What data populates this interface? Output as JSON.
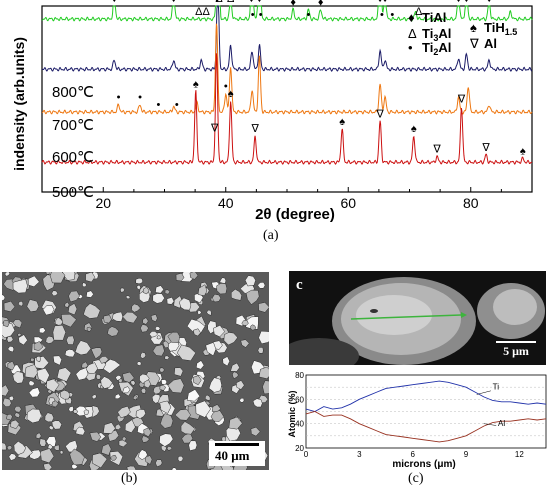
{
  "chart_data": [
    {
      "type": "line",
      "panel_label": "(a)",
      "xlabel": "2θ (degree)",
      "ylabel": "indensity (arb.units)",
      "xlim": [
        10,
        90
      ],
      "x_ticks": [
        "20",
        "40",
        "60",
        "80"
      ],
      "x_tick_values": [
        20,
        40,
        60,
        80
      ],
      "grid": false,
      "legend_position": "top-right",
      "legend": [
        {
          "symbol": "♦",
          "label": "TiAl"
        },
        {
          "symbol": "Δ",
          "label": "Ti3Al"
        },
        {
          "symbol": "•",
          "label": "Ti2Al"
        },
        {
          "symbol": "♠",
          "label": "TiH1.5"
        },
        {
          "symbol": "∇",
          "label": "Al"
        }
      ],
      "series": [
        {
          "name": "800℃",
          "color": "#22cc22",
          "baseline": 0.93,
          "peaks": [
            [
              21.8,
              0.12
            ],
            [
              31.5,
              0.12
            ],
            [
              38.7,
              0.95
            ],
            [
              40.8,
              0.12
            ],
            [
              44.3,
              0.28
            ],
            [
              45.5,
              0.38
            ],
            [
              51,
              0.05
            ],
            [
              53.5,
              0.05
            ],
            [
              55.5,
              0.05
            ],
            [
              65.2,
              0.33
            ],
            [
              66,
              0.12
            ],
            [
              71,
              0.04
            ],
            [
              78,
              0.12
            ],
            [
              79.3,
              0.16
            ],
            [
              83,
              0.1
            ],
            [
              86.5,
              0.04
            ]
          ]
        },
        {
          "name": "700℃",
          "color": "#1a1a66",
          "baseline": 0.66,
          "peaks": [
            [
              21.8,
              0.05
            ],
            [
              31.5,
              0.05
            ],
            [
              36,
              0.05
            ],
            [
              38.7,
              0.45
            ],
            [
              40.8,
              0.13
            ],
            [
              44.3,
              0.1
            ],
            [
              45.5,
              0.13
            ],
            [
              65.2,
              0.1
            ],
            [
              66,
              0.05
            ],
            [
              78,
              0.06
            ],
            [
              79.3,
              0.08
            ],
            [
              83,
              0.05
            ]
          ]
        },
        {
          "name": "600℃",
          "color": "#ee7711",
          "baseline": 0.43,
          "peaks": [
            [
              22.5,
              0.04
            ],
            [
              26,
              0.04
            ],
            [
              31.5,
              0.03
            ],
            [
              35.3,
              0.05
            ],
            [
              38.5,
              0.48
            ],
            [
              40,
              0.1
            ],
            [
              40.8,
              0.25
            ],
            [
              44.3,
              0.12
            ],
            [
              45.5,
              0.3
            ],
            [
              65.2,
              0.15
            ],
            [
              66,
              0.08
            ],
            [
              78,
              0.08
            ],
            [
              79.6,
              0.14
            ],
            [
              83,
              0.04
            ]
          ]
        },
        {
          "name": "500℃",
          "color": "#cc1111",
          "baseline": 0.16,
          "peaks": [
            [
              35.1,
              0.38
            ],
            [
              38.5,
              0.58
            ],
            [
              40.8,
              0.33
            ],
            [
              44.8,
              0.14
            ],
            [
              59,
              0.18
            ],
            [
              65.2,
              0.22
            ],
            [
              70.7,
              0.14
            ],
            [
              74.5,
              0.03
            ],
            [
              78.5,
              0.3
            ],
            [
              82.5,
              0.04
            ],
            [
              88.5,
              0.02
            ]
          ]
        }
      ],
      "series_labels": [
        "800℃",
        "700℃",
        "600℃",
        "500℃"
      ],
      "peak_markers": [
        {
          "series": 0,
          "x": 21.8,
          "symbol": "♦"
        },
        {
          "series": 0,
          "x": 31.5,
          "symbol": "♦"
        },
        {
          "series": 0,
          "x": 36.2,
          "symbol": "ΔΔ"
        },
        {
          "series": 0,
          "x": 38.6,
          "symbol": "♦"
        },
        {
          "series": 0,
          "x": 38.9,
          "symbol": "Δ"
        },
        {
          "series": 0,
          "x": 40.8,
          "symbol": "Δ"
        },
        {
          "series": 0,
          "x": 44.2,
          "symbol": "♦"
        },
        {
          "series": 0,
          "x": 44.4,
          "symbol": "•"
        },
        {
          "series": 0,
          "x": 45.5,
          "symbol": "♦"
        },
        {
          "series": 0,
          "x": 45.7,
          "symbol": "•"
        },
        {
          "series": 0,
          "x": 51,
          "symbol": "♦"
        },
        {
          "series": 0,
          "x": 53.5,
          "symbol": "•"
        },
        {
          "series": 0,
          "x": 55.5,
          "symbol": "♦"
        },
        {
          "series": 0,
          "x": 65.2,
          "symbol": "♦"
        },
        {
          "series": 0,
          "x": 65.5,
          "symbol": "•"
        },
        {
          "series": 0,
          "x": 66,
          "symbol": "♦"
        },
        {
          "series": 0,
          "x": 67.2,
          "symbol": "•"
        },
        {
          "series": 0,
          "x": 71.5,
          "symbol": "Δ"
        },
        {
          "series": 0,
          "x": 78,
          "symbol": "♦"
        },
        {
          "series": 0,
          "x": 79.3,
          "symbol": "♦"
        },
        {
          "series": 0,
          "x": 83,
          "symbol": "♦"
        },
        {
          "series": 2,
          "x": 22.5,
          "symbol": "•"
        },
        {
          "series": 2,
          "x": 26,
          "symbol": "•"
        },
        {
          "series": 2,
          "x": 29,
          "symbol": "•"
        },
        {
          "series": 2,
          "x": 32,
          "symbol": "•"
        },
        {
          "series": 2,
          "x": 40,
          "symbol": "•"
        },
        {
          "series": 3,
          "x": 35.1,
          "symbol": "♠"
        },
        {
          "series": 3,
          "x": 38.2,
          "symbol": "∇"
        },
        {
          "series": 3,
          "x": 40.8,
          "symbol": "♠"
        },
        {
          "series": 3,
          "x": 44.8,
          "symbol": "∇"
        },
        {
          "series": 3,
          "x": 59,
          "symbol": "♠"
        },
        {
          "series": 3,
          "x": 65.2,
          "symbol": "∇"
        },
        {
          "series": 3,
          "x": 70.7,
          "symbol": "♠"
        },
        {
          "series": 3,
          "x": 74.5,
          "symbol": "∇"
        },
        {
          "series": 3,
          "x": 78.5,
          "symbol": "∇"
        },
        {
          "series": 3,
          "x": 82.5,
          "symbol": "∇"
        },
        {
          "series": 3,
          "x": 88.5,
          "symbol": "♠"
        }
      ]
    },
    {
      "type": "line",
      "panel_label": "(c)",
      "inset_label": "c",
      "scale_bar": "5 μm",
      "xlabel": "microns (μm)",
      "ylabel": "Atomic (%)",
      "xlim": [
        0,
        13.5
      ],
      "ylim": [
        20,
        80
      ],
      "x_ticks": [
        "0",
        "3",
        "6",
        "9",
        "12"
      ],
      "x_tick_values": [
        0,
        3,
        6,
        9,
        12
      ],
      "y_ticks": [
        "20",
        "40",
        "60",
        "80"
      ],
      "y_tick_values": [
        20,
        40,
        60,
        80
      ],
      "grid": true,
      "series": [
        {
          "name": "Ti",
          "color": "#2233aa",
          "x": [
            0,
            0.5,
            1,
            1.5,
            2,
            2.5,
            3,
            3.5,
            4,
            4.5,
            5,
            5.5,
            6,
            6.5,
            7,
            7.5,
            8,
            8.5,
            9,
            9.5,
            10,
            10.5,
            11,
            11.5,
            12,
            12.5,
            13,
            13.5
          ],
          "values": [
            52,
            50,
            54,
            52,
            53,
            56,
            60,
            63,
            66,
            69,
            70,
            71,
            72,
            73,
            74,
            75,
            74,
            72,
            70,
            66,
            62,
            59,
            58,
            58,
            57,
            56,
            57,
            56
          ]
        },
        {
          "name": "Al",
          "color": "#993322",
          "x": [
            0,
            0.5,
            1,
            1.5,
            2,
            2.5,
            3,
            3.5,
            4,
            4.5,
            5,
            5.5,
            6,
            6.5,
            7,
            7.5,
            8,
            8.5,
            9,
            9.5,
            10,
            10.5,
            11,
            11.5,
            12,
            12.5,
            13,
            13.5
          ],
          "values": [
            48,
            50,
            46,
            47,
            47,
            44,
            40,
            37,
            34,
            31,
            30,
            29,
            28,
            27,
            26,
            25,
            26,
            28,
            30,
            34,
            38,
            41,
            42,
            42,
            43,
            44,
            43,
            44
          ]
        }
      ]
    }
  ],
  "panel_b": {
    "label": "(b)",
    "scale_bar": "40 μm"
  },
  "legend_subscript": {
    "Ti3Al": [
      "Ti",
      "3",
      "Al"
    ],
    "Ti2Al": [
      "Ti",
      "2",
      "Al"
    ],
    "TiH1.5": [
      "TiH",
      "1.5",
      ""
    ]
  }
}
